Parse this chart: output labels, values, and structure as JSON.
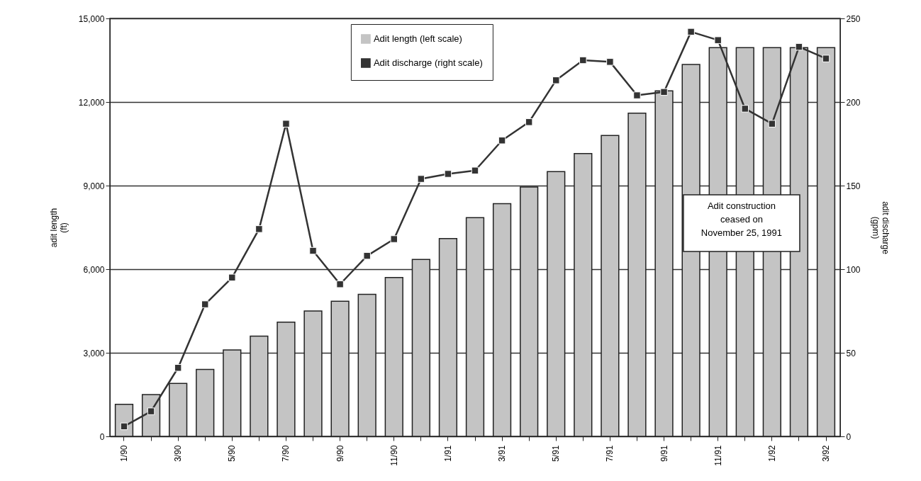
{
  "chart_data": {
    "type": "bar",
    "categories": [
      "1/90",
      null,
      "3/90",
      null,
      "5/90",
      null,
      "7/90",
      null,
      "9/90",
      null,
      "11/90",
      null,
      "1/91",
      null,
      "3/91",
      null,
      "5/91",
      null,
      "7/91",
      null,
      "9/91",
      null,
      "11/91",
      null,
      "1/92",
      null,
      "3/92"
    ],
    "series": [
      {
        "name": "Adit length (left scale)",
        "color": "#c4c4c4",
        "values": [
          1150,
          1500,
          1900,
          2400,
          3100,
          3600,
          4100,
          4500,
          4850,
          5100,
          5700,
          6350,
          7100,
          7850,
          8350,
          8950,
          9500,
          10150,
          10800,
          11600,
          12400,
          13350,
          13950,
          13950,
          13950,
          13950,
          13950
        ]
      },
      {
        "name": "Adit discharge (right scale)",
        "type": "line",
        "axis": "y2",
        "color": "#333333",
        "marker": "square",
        "values": [
          6,
          15,
          41,
          79,
          95,
          124,
          187,
          111,
          91,
          108,
          118,
          154,
          157,
          159,
          177,
          188,
          213,
          225,
          224,
          204,
          206,
          242,
          237,
          196,
          187,
          233,
          226
        ]
      }
    ],
    "ylabel": "adit length\n(ft)",
    "y2label": "adit discharge\n(gpm)",
    "ylim": [
      0,
      15000
    ],
    "yticks": [
      {
        "value": 0,
        "label": "0"
      },
      {
        "value": 3000,
        "label": "3,000"
      },
      {
        "value": 6000,
        "label": "6,000"
      },
      {
        "value": 9000,
        "label": "9,000"
      },
      {
        "value": 12000,
        "label": "12,000"
      },
      {
        "value": 15000,
        "label": "15,000"
      }
    ],
    "y2lim": [
      0,
      250
    ],
    "y2ticks": [
      0,
      50,
      100,
      150,
      200,
      250
    ],
    "grid": "y",
    "legend": "top",
    "annotations": [
      "Adit construction\nceased on\nNovember 25, 1991"
    ]
  }
}
